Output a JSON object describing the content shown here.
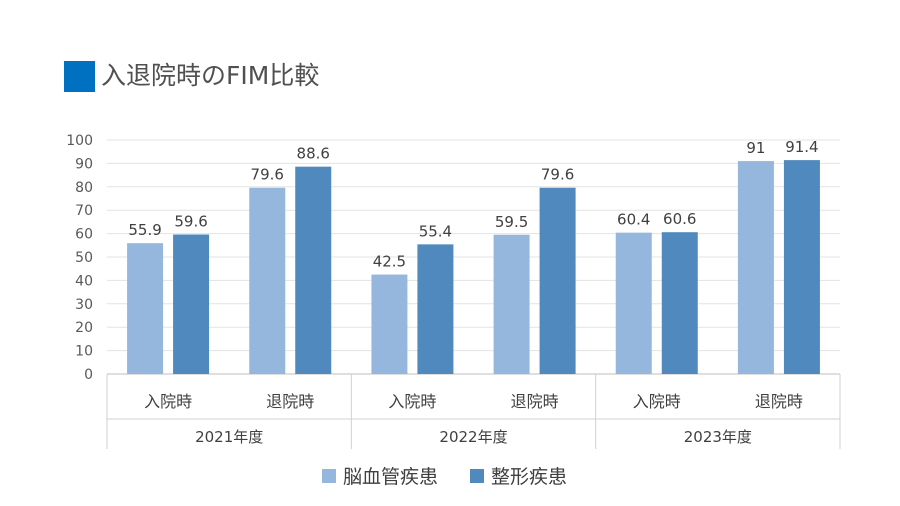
{
  "title": "入退院時のFIM比較",
  "colors": {
    "accent": "#0070c0",
    "series1": "#95b7de",
    "series2": "#4f89bd"
  },
  "chart_data": {
    "type": "bar",
    "title": "入退院時のFIM比較",
    "groups": [
      {
        "label": "2021年度",
        "categories": [
          "入院時",
          "退院時"
        ]
      },
      {
        "label": "2022年度",
        "categories": [
          "入院時",
          "退院時"
        ]
      },
      {
        "label": "2023年度",
        "categories": [
          "入院時",
          "退院時"
        ]
      }
    ],
    "series": [
      {
        "name": "脳血管疾患",
        "color": "#95b7de",
        "values": [
          55.9,
          79.6,
          42.5,
          59.5,
          60.4,
          91
        ]
      },
      {
        "name": "整形疾患",
        "color": "#4f89bd",
        "values": [
          59.6,
          88.6,
          55.4,
          79.6,
          60.6,
          91.4
        ]
      }
    ],
    "ylim": [
      0,
      100
    ],
    "yticks": [
      0,
      10,
      20,
      30,
      40,
      50,
      60,
      70,
      80,
      90,
      100
    ],
    "grid": true,
    "legend": "bottom",
    "data_labels": true
  }
}
